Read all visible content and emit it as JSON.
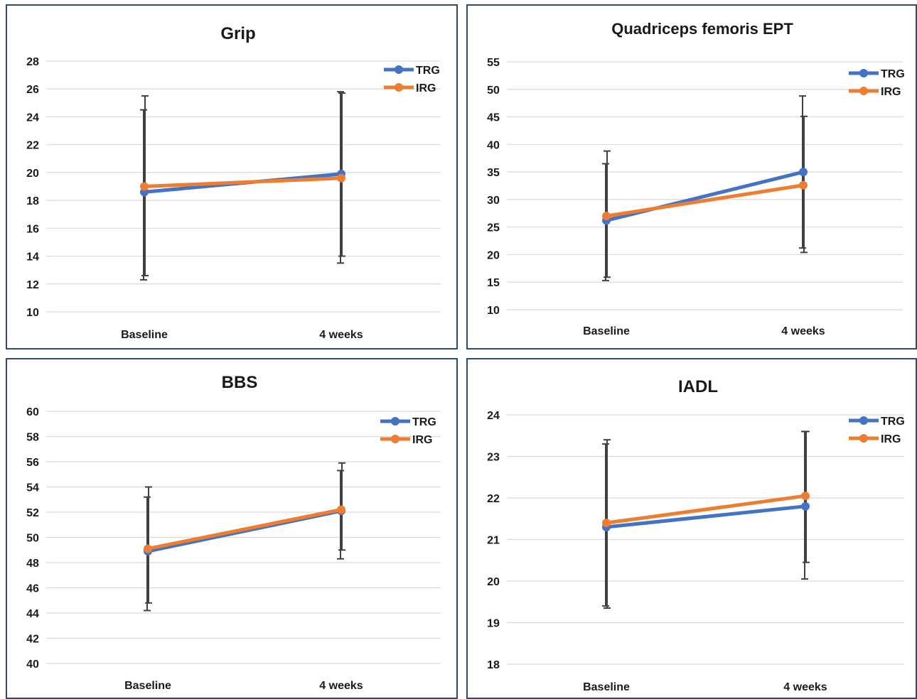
{
  "colors": {
    "TRG": "#4472c4",
    "IRG": "#ed7d31",
    "grid": "#d9d9d9",
    "errorbar": "#404040",
    "border": "#2f4b6c"
  },
  "chart_data": [
    {
      "type": "line",
      "title": "Grip",
      "categories": [
        "Baseline",
        "4 weeks"
      ],
      "ylim": [
        10,
        28
      ],
      "yticks": [
        10,
        12,
        14,
        16,
        18,
        20,
        22,
        24,
        26,
        28
      ],
      "grid": true,
      "legend": "top-right",
      "series": [
        {
          "name": "TRG",
          "values": [
            18.6,
            19.9
          ],
          "err_low": [
            12.3,
            13.5
          ],
          "err_high": [
            24.5,
            25.8
          ]
        },
        {
          "name": "IRG",
          "values": [
            19.0,
            19.6
          ],
          "err_low": [
            12.6,
            14.0
          ],
          "err_high": [
            25.5,
            25.7
          ]
        }
      ]
    },
    {
      "type": "line",
      "title": "Quadriceps femoris EPT",
      "categories": [
        "Baseline",
        "4 weeks"
      ],
      "ylim": [
        10,
        55
      ],
      "yticks": [
        10,
        15,
        20,
        25,
        30,
        35,
        40,
        45,
        50,
        55
      ],
      "grid": true,
      "legend": "top-right",
      "series": [
        {
          "name": "TRG",
          "values": [
            26.2,
            35.0
          ],
          "err_low": [
            15.3,
            21.2
          ],
          "err_high": [
            36.5,
            48.8
          ]
        },
        {
          "name": "IRG",
          "values": [
            27.0,
            32.6
          ],
          "err_low": [
            15.9,
            20.4
          ],
          "err_high": [
            38.8,
            45.1
          ]
        }
      ]
    },
    {
      "type": "line",
      "title": "BBS",
      "categories": [
        "Baseline",
        "4 weeks"
      ],
      "ylim": [
        40,
        60
      ],
      "yticks": [
        40,
        42,
        44,
        46,
        48,
        50,
        52,
        54,
        56,
        58,
        60
      ],
      "grid": true,
      "legend": "top-right",
      "series": [
        {
          "name": "TRG",
          "values": [
            48.9,
            52.1
          ],
          "err_low": [
            44.2,
            48.3
          ],
          "err_high": [
            53.2,
            55.3
          ]
        },
        {
          "name": "IRG",
          "values": [
            49.1,
            52.2
          ],
          "err_low": [
            44.8,
            49.0
          ],
          "err_high": [
            54.0,
            55.9
          ]
        }
      ]
    },
    {
      "type": "line",
      "title": "IADL",
      "categories": [
        "Baseline",
        "4 weeks"
      ],
      "ylim": [
        18,
        24
      ],
      "yticks": [
        18,
        19,
        20,
        21,
        22,
        23,
        24
      ],
      "grid": true,
      "legend": "top-right",
      "series": [
        {
          "name": "TRG",
          "values": [
            21.3,
            21.8
          ],
          "err_low": [
            19.4,
            20.05
          ],
          "err_high": [
            23.3,
            23.6
          ]
        },
        {
          "name": "IRG",
          "values": [
            21.4,
            22.05
          ],
          "err_low": [
            19.35,
            20.45
          ],
          "err_high": [
            23.4,
            23.6
          ]
        }
      ]
    }
  ]
}
